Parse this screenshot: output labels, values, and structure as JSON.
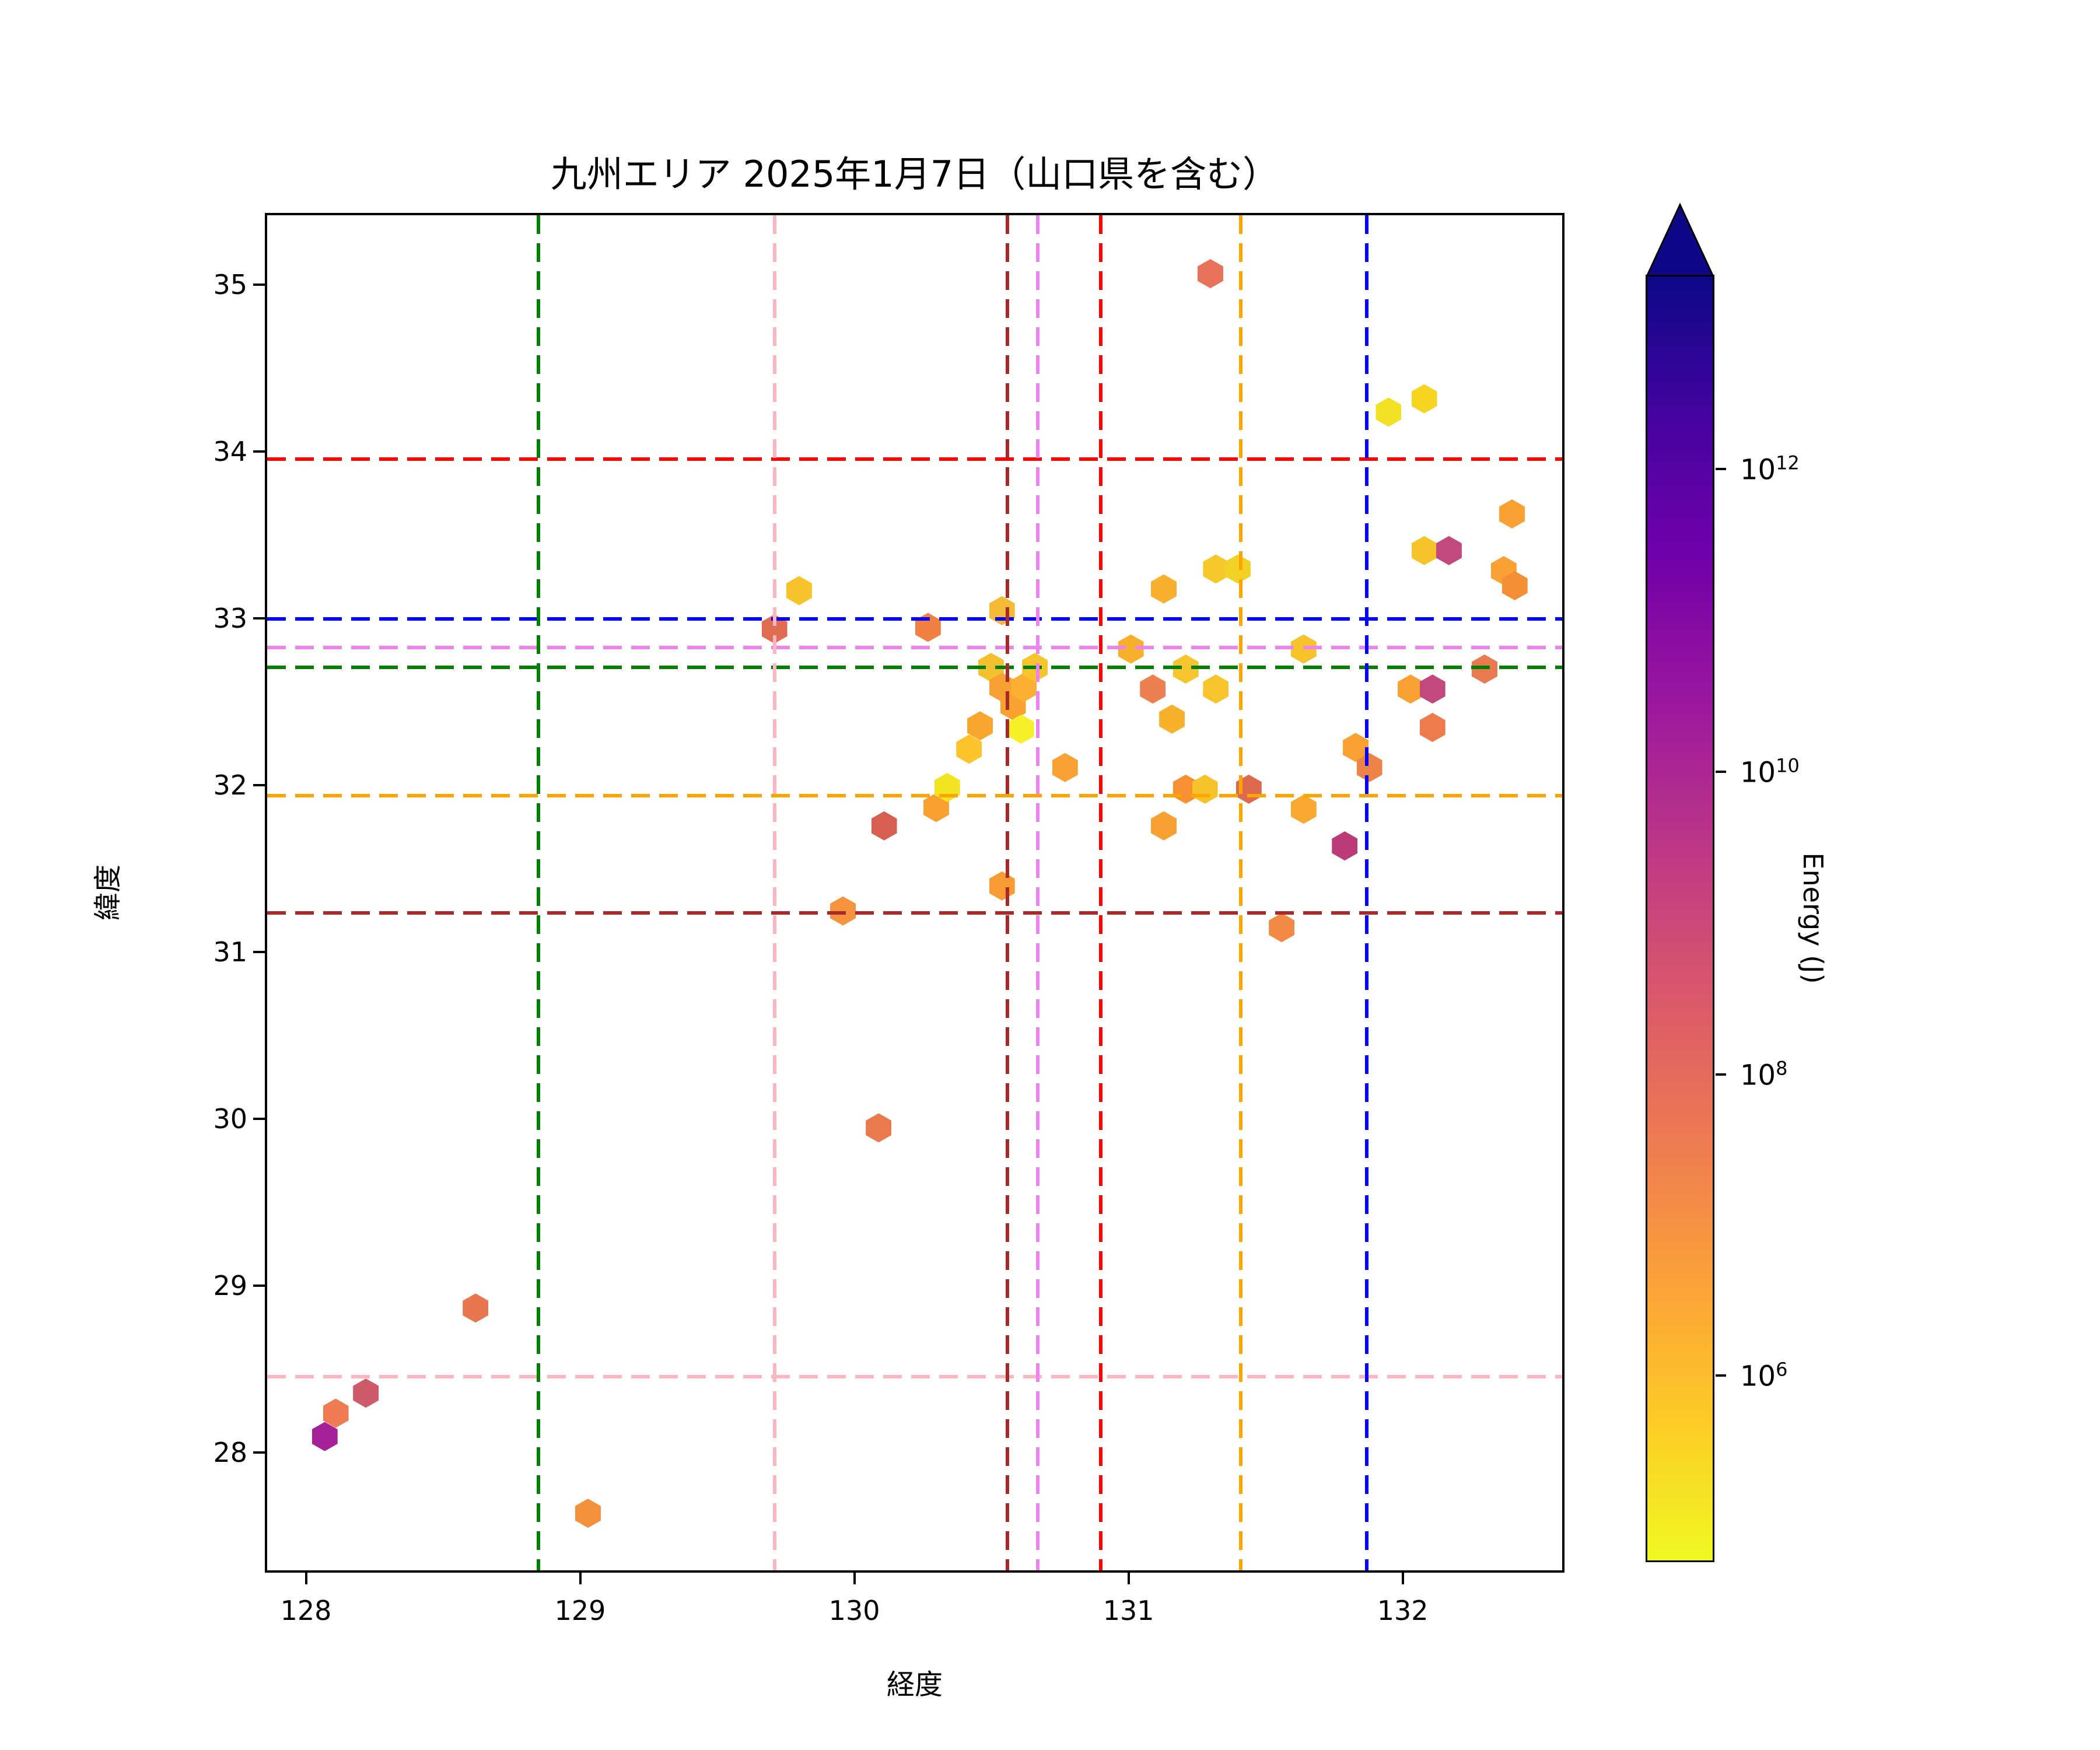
{
  "title": "九州エリア 2025年1月7日（山口県を含む）",
  "chart_data": {
    "type": "scatter",
    "marker": "hexagon",
    "title": "九州エリア 2025年1月7日（山口県を含む）",
    "xlabel": "経度",
    "ylabel": "緯度",
    "xlim": [
      127.85,
      132.59
    ],
    "ylim": [
      27.28,
      35.43
    ],
    "x_ticks": [
      "128",
      "129",
      "130",
      "131",
      "132"
    ],
    "x_tick_values": [
      128,
      129,
      130,
      131,
      132
    ],
    "y_ticks": [
      "28",
      "29",
      "30",
      "31",
      "32",
      "33",
      "34",
      "35"
    ],
    "y_tick_values": [
      28,
      29,
      30,
      31,
      32,
      33,
      34,
      35
    ],
    "grid": false,
    "legend": "none",
    "points_note": "each point: longitude, latitude, rendered color (plasma_r colormap), estimated energy in J read from colorbar colors",
    "points": [
      {
        "lon": 128.06,
        "lat": 28.11,
        "color": "#a62098",
        "energy_j": 20000000000.0
      },
      {
        "lon": 128.1,
        "lat": 28.25,
        "color": "#ee7b51",
        "energy_j": 40000000.0
      },
      {
        "lon": 128.21,
        "lat": 28.37,
        "color": "#cf5a69",
        "energy_j": 400000000.0
      },
      {
        "lon": 128.61,
        "lat": 28.88,
        "color": "#e8764f",
        "energy_j": 50000000.0
      },
      {
        "lon": 129.02,
        "lat": 27.65,
        "color": "#f4913d",
        "energy_j": 15000000.0
      },
      {
        "lon": 129.7,
        "lat": 32.95,
        "color": "#e06c52",
        "energy_j": 100000000.0
      },
      {
        "lon": 129.79,
        "lat": 33.18,
        "color": "#f6c42a",
        "energy_j": 800000.0
      },
      {
        "lon": 129.95,
        "lat": 31.26,
        "color": "#f6933f",
        "energy_j": 12000000.0
      },
      {
        "lon": 130.08,
        "lat": 29.96,
        "color": "#e87a4e",
        "energy_j": 50000000.0
      },
      {
        "lon": 130.1,
        "lat": 31.77,
        "color": "#d65f51",
        "energy_j": 250000000.0
      },
      {
        "lon": 130.26,
        "lat": 32.96,
        "color": "#f08143",
        "energy_j": 25000000.0
      },
      {
        "lon": 130.29,
        "lat": 31.88,
        "color": "#f9a031",
        "energy_j": 5000000.0
      },
      {
        "lon": 130.33,
        "lat": 32.0,
        "color": "#f0e423",
        "energy_j": 160000.0
      },
      {
        "lon": 130.41,
        "lat": 32.23,
        "color": "#fcc32a",
        "energy_j": 700000.0
      },
      {
        "lon": 130.45,
        "lat": 32.37,
        "color": "#f9a62f",
        "energy_j": 4000000.0
      },
      {
        "lon": 130.49,
        "lat": 32.72,
        "color": "#f3c02e",
        "energy_j": 900000.0
      },
      {
        "lon": 130.53,
        "lat": 33.06,
        "color": "#f5bb36",
        "energy_j": 1000000.0
      },
      {
        "lon": 130.53,
        "lat": 32.6,
        "color": "#f8a133",
        "energy_j": 6000000.0
      },
      {
        "lon": 130.53,
        "lat": 31.41,
        "color": "#f89b35",
        "energy_j": 6000000.0
      },
      {
        "lon": 130.57,
        "lat": 32.49,
        "color": "#f9a22f",
        "energy_j": 6000000.0
      },
      {
        "lon": 130.61,
        "lat": 32.6,
        "color": "#fbb034",
        "energy_j": 2000000.0
      },
      {
        "lon": 130.6,
        "lat": 32.35,
        "color": "#f5f028",
        "energy_j": 120000.0
      },
      {
        "lon": 130.65,
        "lat": 32.72,
        "color": "#f6c42c",
        "energy_j": 800000.0
      },
      {
        "lon": 130.76,
        "lat": 32.12,
        "color": "#f9a233",
        "energy_j": 4000000.0
      },
      {
        "lon": 131.0,
        "lat": 32.83,
        "color": "#f8b02c",
        "energy_j": 2000000.0
      },
      {
        "lon": 131.08,
        "lat": 32.59,
        "color": "#ed8050",
        "energy_j": 30000000.0
      },
      {
        "lon": 131.12,
        "lat": 33.19,
        "color": "#f9b02e",
        "energy_j": 2000000.0
      },
      {
        "lon": 131.12,
        "lat": 31.77,
        "color": "#f9a032",
        "energy_j": 5000000.0
      },
      {
        "lon": 131.15,
        "lat": 32.41,
        "color": "#f8b12d",
        "energy_j": 2000000.0
      },
      {
        "lon": 131.2,
        "lat": 32.71,
        "color": "#f6c42c",
        "energy_j": 800000.0
      },
      {
        "lon": 131.2,
        "lat": 31.99,
        "color": "#f69033",
        "energy_j": 12000000.0
      },
      {
        "lon": 131.27,
        "lat": 31.99,
        "color": "#f6c42a",
        "energy_j": 800000.0
      },
      {
        "lon": 131.29,
        "lat": 35.08,
        "color": "#e8735a",
        "energy_j": 100000000.0
      },
      {
        "lon": 131.31,
        "lat": 33.31,
        "color": "#f6c92b",
        "energy_j": 700000.0
      },
      {
        "lon": 131.39,
        "lat": 33.31,
        "color": "#f2d126",
        "energy_j": 500000.0
      },
      {
        "lon": 131.31,
        "lat": 32.59,
        "color": "#f6c42c",
        "energy_j": 800000.0
      },
      {
        "lon": 131.43,
        "lat": 31.99,
        "color": "#dd6a4f",
        "energy_j": 150000000.0
      },
      {
        "lon": 131.55,
        "lat": 31.16,
        "color": "#f28a44",
        "energy_j": 20000000.0
      },
      {
        "lon": 131.63,
        "lat": 32.83,
        "color": "#f6c42a",
        "energy_j": 800000.0
      },
      {
        "lon": 131.63,
        "lat": 31.87,
        "color": "#f9a92f",
        "energy_j": 3000000.0
      },
      {
        "lon": 131.78,
        "lat": 31.65,
        "color": "#bb3a78",
        "energy_j": 5000000000.0
      },
      {
        "lon": 131.82,
        "lat": 32.24,
        "color": "#f9a233",
        "energy_j": 4000000.0
      },
      {
        "lon": 131.87,
        "lat": 32.12,
        "color": "#ee8347",
        "energy_j": 30000000.0
      },
      {
        "lon": 131.94,
        "lat": 34.25,
        "color": "#f4e022",
        "energy_j": 200000.0
      },
      {
        "lon": 132.02,
        "lat": 32.59,
        "color": "#f9a233",
        "energy_j": 4000000.0
      },
      {
        "lon": 132.07,
        "lat": 34.33,
        "color": "#f6d522",
        "energy_j": 400000.0
      },
      {
        "lon": 132.07,
        "lat": 33.42,
        "color": "#f6c42a",
        "energy_j": 800000.0
      },
      {
        "lon": 132.1,
        "lat": 32.59,
        "color": "#c2497c",
        "energy_j": 2000000000.0
      },
      {
        "lon": 132.1,
        "lat": 32.36,
        "color": "#ed7b4c",
        "energy_j": 40000000.0
      },
      {
        "lon": 132.16,
        "lat": 33.42,
        "color": "#c2497c",
        "energy_j": 2000000000.0
      },
      {
        "lon": 132.29,
        "lat": 32.71,
        "color": "#e9794e",
        "energy_j": 50000000.0
      },
      {
        "lon": 132.36,
        "lat": 33.3,
        "color": "#f9a233",
        "energy_j": 4000000.0
      },
      {
        "lon": 132.39,
        "lat": 33.64,
        "color": "#f9a233",
        "energy_j": 3000000.0
      },
      {
        "lon": 132.4,
        "lat": 33.21,
        "color": "#f58f35",
        "energy_j": 10000000.0
      }
    ],
    "hlines": [
      {
        "lat": 33.97,
        "color": "#ff0000"
      },
      {
        "lat": 33.01,
        "color": "#0000ff"
      },
      {
        "lat": 32.84,
        "color": "#ee82ee"
      },
      {
        "lat": 32.72,
        "color": "#008000"
      },
      {
        "lat": 31.95,
        "color": "#ffa500"
      },
      {
        "lat": 31.25,
        "color": "#a52a2a"
      },
      {
        "lat": 28.47,
        "color": "#ffb6c1"
      }
    ],
    "vlines": [
      {
        "lon": 128.84,
        "color": "#008000"
      },
      {
        "lon": 129.7,
        "color": "#ffb6c1"
      },
      {
        "lon": 130.55,
        "color": "#a52a2a"
      },
      {
        "lon": 130.66,
        "color": "#ee82ee"
      },
      {
        "lon": 130.89,
        "color": "#ff0000"
      },
      {
        "lon": 131.4,
        "color": "#ffa500"
      },
      {
        "lon": 131.86,
        "color": "#0000ff"
      }
    ],
    "colorbar": {
      "label": "Energy (J)",
      "scale": "log",
      "extend_max_arrow": true,
      "gradient_top_to_bottom": [
        "#0d0887",
        "#46039f",
        "#7201a8",
        "#9c179e",
        "#bd3786",
        "#d8576b",
        "#ed7953",
        "#fb9f3a",
        "#fdca26",
        "#f0f921"
      ],
      "ticks": [
        {
          "base": "10",
          "exp": "12",
          "value": 1000000000000.0,
          "frac": 0.151
        },
        {
          "base": "10",
          "exp": "10",
          "value": 10000000000.0,
          "frac": 0.386
        },
        {
          "base": "10",
          "exp": "8",
          "value": 100000000.0,
          "frac": 0.621
        },
        {
          "base": "10",
          "exp": "6",
          "value": 1000000.0,
          "frac": 0.855
        }
      ]
    }
  }
}
